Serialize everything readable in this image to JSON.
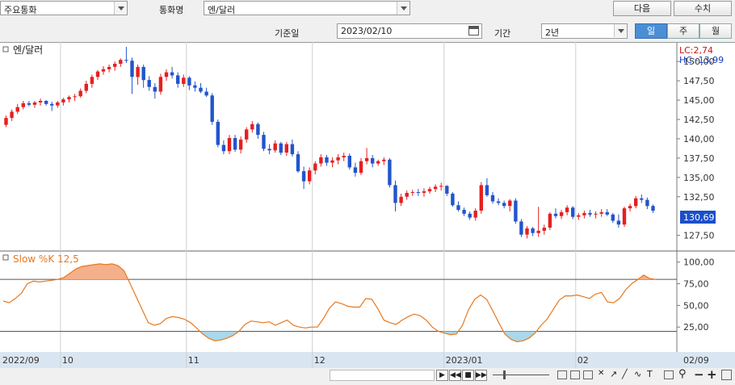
{
  "toolbar": {
    "category_select": "주요통화",
    "currency_label": "통화명",
    "currency_select": "엔/달러",
    "next_button": "다음",
    "numeric_button": "수치",
    "date_label": "기준일",
    "date_value": "2023/02/10",
    "period_label": "기간",
    "period_select": "2년",
    "period_tabs": [
      "일",
      "주",
      "월"
    ]
  },
  "price_panel": {
    "title": "엔/달러",
    "lc": "LC:2,74",
    "hc": "HC:-13,99",
    "y_ticks": [
      "150,00",
      "147,50",
      "145,00",
      "142,50",
      "140,00",
      "137,50",
      "135,00",
      "132,50",
      "127,50"
    ],
    "current_value": "130,69"
  },
  "osc_panel": {
    "title": "Slow %K 12,5",
    "y_ticks": [
      "100,00",
      "75,00",
      "50,00",
      "25,00"
    ]
  },
  "x_axis": {
    "labels": [
      "2022/09",
      "10",
      "11",
      "12",
      "2023/01",
      "02",
      "02/09"
    ]
  },
  "colors": {
    "up": "#e52020",
    "down": "#2255cc",
    "line": "#e8781e",
    "overbought_fill": "#f4b08a",
    "oversold_fill": "#a8d8ea",
    "axis_bg": "#d9e6f2"
  },
  "chart_data": [
    {
      "type": "candlestick",
      "title": "엔/달러",
      "ylim": [
        126,
        152
      ],
      "candles": [
        [
          141.8,
          143.0,
          141.5,
          142.7
        ],
        [
          142.7,
          143.8,
          142.3,
          143.5
        ],
        [
          143.5,
          144.5,
          143.2,
          144.1
        ],
        [
          144.1,
          144.9,
          143.8,
          144.6
        ],
        [
          144.6,
          144.9,
          144.2,
          144.4
        ],
        [
          144.4,
          144.9,
          144.0,
          144.7
        ],
        [
          144.7,
          145.2,
          144.3,
          144.9
        ],
        [
          144.9,
          145.0,
          144.3,
          144.5
        ],
        [
          144.5,
          144.8,
          143.6,
          144.3
        ],
        [
          144.3,
          144.9,
          144.0,
          144.7
        ],
        [
          144.7,
          145.3,
          144.3,
          145.1
        ],
        [
          145.1,
          145.6,
          144.7,
          145.4
        ],
        [
          145.4,
          145.8,
          144.9,
          145.5
        ],
        [
          145.5,
          146.5,
          145.3,
          146.2
        ],
        [
          146.2,
          147.5,
          145.9,
          147.1
        ],
        [
          147.1,
          148.3,
          146.6,
          148.0
        ],
        [
          148.0,
          148.9,
          147.6,
          148.7
        ],
        [
          148.7,
          149.4,
          148.3,
          149.0
        ],
        [
          149.0,
          149.6,
          148.6,
          149.3
        ],
        [
          149.3,
          150.0,
          148.8,
          149.7
        ],
        [
          149.7,
          150.4,
          149.3,
          150.2
        ],
        [
          150.2,
          151.9,
          149.8,
          150.1
        ],
        [
          150.1,
          150.5,
          145.8,
          148.0
        ],
        [
          148.0,
          149.6,
          147.0,
          149.3
        ],
        [
          149.3,
          149.6,
          146.6,
          147.6
        ],
        [
          147.6,
          148.1,
          146.2,
          146.7
        ],
        [
          146.7,
          147.2,
          145.2,
          146.1
        ],
        [
          146.1,
          148.4,
          145.7,
          148.0
        ],
        [
          148.0,
          149.0,
          147.5,
          148.6
        ],
        [
          148.6,
          149.3,
          147.8,
          148.2
        ],
        [
          148.2,
          148.6,
          146.6,
          147.1
        ],
        [
          147.1,
          148.3,
          146.7,
          147.9
        ],
        [
          147.9,
          148.1,
          146.3,
          146.9
        ],
        [
          146.9,
          147.4,
          146.1,
          146.6
        ],
        [
          146.6,
          147.2,
          145.9,
          146.1
        ],
        [
          146.1,
          146.6,
          145.4,
          145.6
        ],
        [
          145.6,
          145.9,
          141.8,
          142.2
        ],
        [
          142.2,
          142.5,
          138.9,
          139.2
        ],
        [
          139.2,
          139.8,
          138.0,
          138.4
        ],
        [
          138.4,
          140.5,
          138.0,
          140.1
        ],
        [
          140.1,
          140.5,
          138.3,
          138.6
        ],
        [
          138.6,
          140.3,
          138.1,
          139.9
        ],
        [
          139.9,
          141.5,
          139.5,
          141.2
        ],
        [
          141.2,
          142.3,
          140.8,
          141.9
        ],
        [
          141.9,
          142.1,
          140.0,
          140.5
        ],
        [
          140.5,
          140.9,
          138.4,
          138.7
        ],
        [
          138.7,
          139.3,
          138.0,
          138.5
        ],
        [
          138.5,
          139.8,
          138.2,
          139.4
        ],
        [
          139.4,
          139.6,
          137.9,
          138.2
        ],
        [
          138.2,
          139.6,
          137.8,
          139.3
        ],
        [
          139.3,
          139.9,
          137.7,
          138.0
        ],
        [
          138.0,
          138.4,
          135.6,
          135.8
        ],
        [
          135.8,
          136.4,
          133.5,
          134.5
        ],
        [
          134.5,
          136.3,
          134.1,
          135.9
        ],
        [
          135.9,
          137.1,
          135.4,
          136.8
        ],
        [
          136.8,
          138.0,
          136.4,
          137.6
        ],
        [
          137.6,
          137.9,
          136.5,
          136.9
        ],
        [
          136.9,
          137.6,
          136.3,
          137.2
        ],
        [
          137.2,
          138.0,
          136.7,
          137.6
        ],
        [
          137.6,
          138.2,
          137.1,
          137.8
        ],
        [
          137.8,
          138.1,
          136.0,
          136.3
        ],
        [
          136.3,
          136.9,
          135.1,
          135.6
        ],
        [
          135.6,
          137.5,
          135.3,
          137.1
        ],
        [
          137.1,
          138.8,
          136.7,
          137.5
        ],
        [
          137.5,
          137.9,
          136.3,
          136.8
        ],
        [
          136.8,
          137.3,
          136.5,
          137.1
        ],
        [
          137.1,
          137.6,
          136.6,
          137.3
        ],
        [
          137.3,
          137.5,
          133.7,
          134.0
        ],
        [
          134.0,
          134.6,
          130.6,
          131.7
        ],
        [
          131.7,
          132.9,
          131.3,
          132.5
        ],
        [
          132.5,
          133.3,
          132.1,
          133.0
        ],
        [
          133.0,
          133.4,
          132.6,
          133.1
        ],
        [
          133.1,
          133.5,
          132.6,
          133.0
        ],
        [
          133.0,
          133.6,
          132.5,
          133.2
        ],
        [
          133.2,
          133.8,
          132.9,
          133.5
        ],
        [
          133.5,
          134.1,
          133.1,
          133.8
        ],
        [
          133.8,
          134.3,
          133.3,
          133.9
        ],
        [
          133.9,
          134.0,
          132.6,
          132.9
        ],
        [
          132.9,
          133.1,
          131.2,
          131.4
        ],
        [
          131.4,
          131.9,
          130.6,
          130.8
        ],
        [
          130.8,
          131.1,
          130.0,
          130.3
        ],
        [
          130.3,
          130.6,
          129.5,
          129.8
        ],
        [
          129.8,
          131.0,
          129.4,
          130.7
        ],
        [
          130.7,
          134.4,
          130.3,
          134.0
        ],
        [
          134.0,
          134.9,
          132.5,
          132.7
        ],
        [
          132.7,
          133.1,
          131.6,
          131.9
        ],
        [
          131.9,
          132.3,
          131.4,
          131.7
        ],
        [
          131.7,
          132.0,
          131.0,
          131.3
        ],
        [
          131.3,
          132.2,
          130.6,
          132.0
        ],
        [
          132.0,
          132.3,
          129.0,
          129.3
        ],
        [
          129.3,
          129.6,
          127.3,
          127.6
        ],
        [
          127.6,
          128.7,
          127.1,
          128.4
        ],
        [
          128.4,
          128.6,
          127.4,
          127.8
        ],
        [
          127.8,
          131.2,
          127.3,
          128.1
        ],
        [
          128.1,
          128.9,
          127.6,
          128.5
        ],
        [
          128.5,
          130.5,
          128.2,
          130.3
        ],
        [
          130.3,
          131.0,
          129.7,
          130.0
        ],
        [
          130.0,
          130.8,
          129.6,
          130.5
        ],
        [
          130.5,
          131.4,
          130.1,
          131.1
        ],
        [
          131.1,
          131.3,
          129.6,
          129.9
        ],
        [
          129.9,
          130.4,
          129.5,
          130.1
        ],
        [
          130.1,
          130.7,
          129.7,
          130.4
        ],
        [
          130.4,
          130.8,
          129.9,
          130.2
        ],
        [
          130.2,
          130.6,
          129.7,
          130.3
        ],
        [
          130.3,
          130.9,
          129.9,
          130.5
        ],
        [
          130.5,
          130.9,
          130.0,
          130.2
        ],
        [
          130.2,
          130.4,
          129.1,
          129.4
        ],
        [
          129.4,
          130.2,
          128.5,
          128.9
        ],
        [
          128.9,
          131.2,
          128.6,
          131.0
        ],
        [
          131.0,
          131.6,
          130.6,
          131.3
        ],
        [
          131.3,
          132.6,
          131.0,
          132.3
        ],
        [
          132.3,
          132.8,
          131.7,
          132.1
        ],
        [
          132.1,
          132.4,
          130.9,
          131.3
        ],
        [
          131.3,
          131.5,
          130.4,
          130.69
        ]
      ]
    },
    {
      "type": "line",
      "title": "Slow %K 12,5",
      "ylim": [
        0,
        110
      ],
      "reference_lines": [
        80,
        20
      ],
      "values": [
        55,
        53,
        58,
        64,
        75,
        78,
        77,
        78,
        79,
        80,
        82,
        87,
        92,
        95,
        96,
        97,
        98,
        97,
        98,
        96,
        90,
        75,
        60,
        45,
        30,
        27,
        29,
        35,
        37,
        36,
        34,
        30,
        24,
        17,
        12,
        9,
        10,
        12,
        15,
        20,
        28,
        32,
        31,
        30,
        31,
        27,
        30,
        33,
        27,
        25,
        24,
        25,
        25,
        35,
        47,
        54,
        52,
        49,
        48,
        48,
        58,
        57,
        46,
        33,
        30,
        28,
        33,
        37,
        40,
        38,
        33,
        25,
        20,
        18,
        16,
        17,
        27,
        45,
        57,
        62,
        57,
        44,
        30,
        17,
        11,
        8,
        9,
        12,
        18,
        27,
        34,
        45,
        56,
        61,
        61,
        62,
        60,
        58,
        63,
        65,
        54,
        53,
        58,
        68,
        75,
        80,
        85,
        81,
        80
      ]
    }
  ]
}
